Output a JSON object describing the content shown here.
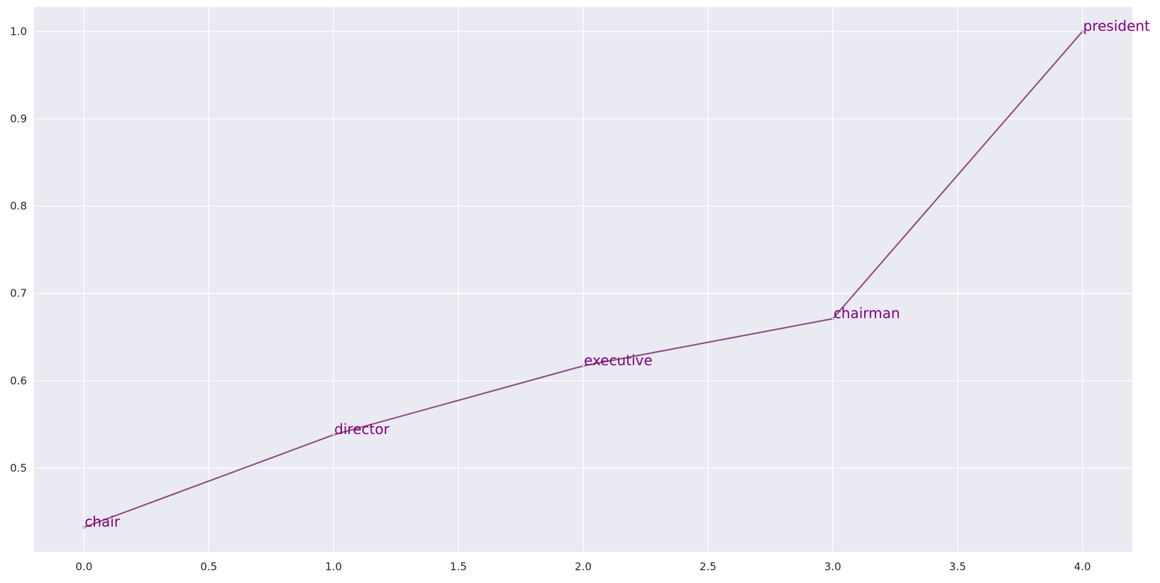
{
  "chart_data": {
    "type": "line",
    "title": "",
    "xlabel": "",
    "ylabel": "",
    "x": [
      0,
      1,
      2,
      3,
      4
    ],
    "y": [
      0.432,
      0.538,
      0.617,
      0.671,
      1.0
    ],
    "point_labels": [
      "chair",
      "director",
      "executive",
      "chairman",
      "president"
    ],
    "xlim": [
      -0.2,
      4.2
    ],
    "ylim": [
      0.404,
      1.028
    ],
    "xticks": [
      0.0,
      0.5,
      1.0,
      1.5,
      2.0,
      2.5,
      3.0,
      3.5,
      4.0
    ],
    "xtick_labels": [
      "0.0",
      "0.5",
      "1.0",
      "1.5",
      "2.0",
      "2.5",
      "3.0",
      "3.5",
      "4.0"
    ],
    "yticks": [
      0.5,
      0.6,
      0.7,
      0.8,
      0.9,
      1.0
    ],
    "ytick_labels": [
      "0.5",
      "0.6",
      "0.7",
      "0.8",
      "0.9",
      "1.0"
    ],
    "grid": true,
    "legend": "none",
    "colors": {
      "line": "#8c4a80",
      "label": "#800080",
      "marker": "#ffffff",
      "background": "#eaeaf2",
      "grid": "#ffffff"
    }
  }
}
